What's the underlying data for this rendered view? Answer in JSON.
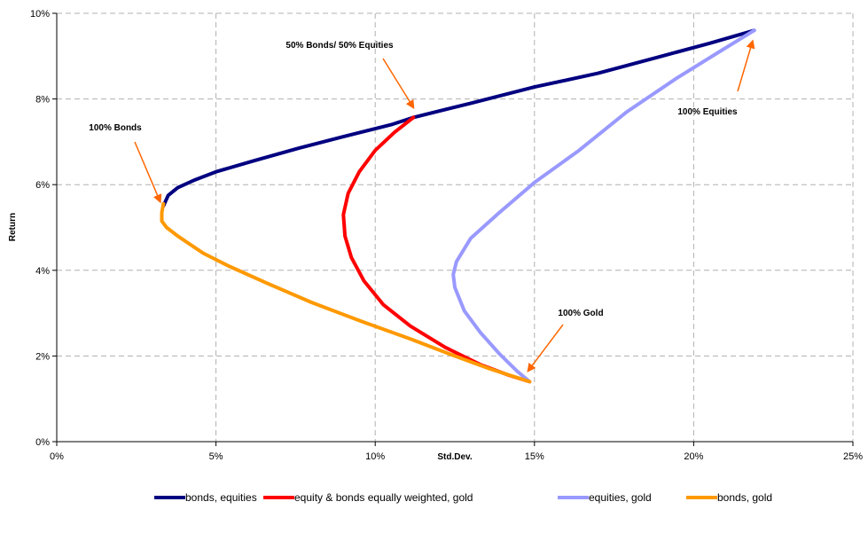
{
  "chart_data": {
    "type": "line",
    "title": "",
    "xlabel": "Std.Dev.",
    "ylabel": "Return",
    "xlim": [
      0,
      25
    ],
    "ylim": [
      0,
      10
    ],
    "x_ticks": [
      "0%",
      "5%",
      "10%",
      "15%",
      "20%",
      "25%"
    ],
    "y_ticks": [
      "0%",
      "2%",
      "4%",
      "6%",
      "8%",
      "10%"
    ],
    "grid": true,
    "legend_position": "bottom",
    "series": [
      {
        "name": "bonds, equities",
        "color": "#000080",
        "points": [
          [
            3.35,
            5.5
          ],
          [
            3.5,
            5.75
          ],
          [
            3.8,
            5.93
          ],
          [
            4.3,
            6.1
          ],
          [
            5.0,
            6.3
          ],
          [
            6.2,
            6.56
          ],
          [
            7.6,
            6.85
          ],
          [
            9.0,
            7.12
          ],
          [
            10.5,
            7.4
          ],
          [
            11.2,
            7.57
          ],
          [
            13.0,
            7.9
          ],
          [
            15.0,
            8.28
          ],
          [
            17.0,
            8.6
          ],
          [
            19.0,
            9.0
          ],
          [
            20.5,
            9.3
          ],
          [
            21.9,
            9.6
          ]
        ]
      },
      {
        "name": "equity & bonds equally weighted, gold",
        "color": "#ff0000",
        "points": [
          [
            11.2,
            7.57
          ],
          [
            10.6,
            7.22
          ],
          [
            10.0,
            6.8
          ],
          [
            9.5,
            6.3
          ],
          [
            9.15,
            5.8
          ],
          [
            9.0,
            5.3
          ],
          [
            9.05,
            4.8
          ],
          [
            9.25,
            4.3
          ],
          [
            9.65,
            3.75
          ],
          [
            10.25,
            3.2
          ],
          [
            11.1,
            2.7
          ],
          [
            12.2,
            2.2
          ],
          [
            13.3,
            1.8
          ],
          [
            14.2,
            1.55
          ],
          [
            14.85,
            1.4
          ]
        ]
      },
      {
        "name": "equities, gold",
        "color": "#9999ff",
        "points": [
          [
            21.9,
            9.6
          ],
          [
            20.8,
            9.1
          ],
          [
            19.5,
            8.5
          ],
          [
            17.9,
            7.7
          ],
          [
            16.4,
            6.8
          ],
          [
            15.0,
            6.05
          ],
          [
            13.9,
            5.35
          ],
          [
            13.0,
            4.75
          ],
          [
            12.55,
            4.2
          ],
          [
            12.45,
            3.9
          ],
          [
            12.5,
            3.6
          ],
          [
            12.8,
            3.05
          ],
          [
            13.3,
            2.55
          ],
          [
            13.9,
            2.05
          ],
          [
            14.45,
            1.65
          ],
          [
            14.85,
            1.4
          ]
        ]
      },
      {
        "name": "bonds, gold",
        "color": "#ff9900",
        "points": [
          [
            3.35,
            5.55
          ],
          [
            3.3,
            5.35
          ],
          [
            3.3,
            5.15
          ],
          [
            3.45,
            5.0
          ],
          [
            3.8,
            4.8
          ],
          [
            4.6,
            4.4
          ],
          [
            5.4,
            4.1
          ],
          [
            6.6,
            3.7
          ],
          [
            8.0,
            3.25
          ],
          [
            9.6,
            2.8
          ],
          [
            11.1,
            2.4
          ],
          [
            12.5,
            2.0
          ],
          [
            13.6,
            1.7
          ],
          [
            14.85,
            1.4
          ]
        ]
      }
    ],
    "annotations": [
      {
        "text": "50% Bonds/ 50% Equities",
        "target": [
          11.2,
          7.8
        ]
      },
      {
        "text": "100% Bonds",
        "target": [
          3.25,
          5.6
        ]
      },
      {
        "text": "100% Equities",
        "target": [
          21.85,
          9.35
        ]
      },
      {
        "text": "100% Gold",
        "target": [
          14.8,
          1.65
        ]
      }
    ],
    "annotation_arrow_color": "#ff6600"
  }
}
